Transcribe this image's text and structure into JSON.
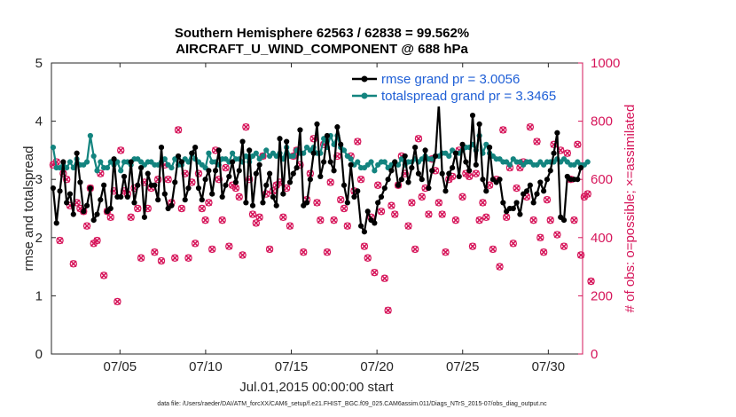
{
  "chart_data": {
    "type": "line",
    "title_line1": "Southern Hemisphere 62563 / 62838 = 99.562%",
    "title_line2": "AIRCRAFT_U_WIND_COMPONENT @ 688 hPa",
    "xlabel": "Jul.01,2015 00:00:00 start",
    "ylabel": "rmse and totalspread",
    "ylabel_right": "# of obs: o=possible; ×=assimilated",
    "x_tick_labels": [
      "07/05",
      "07/10",
      "07/15",
      "07/20",
      "07/25",
      "07/30"
    ],
    "x_tick_days": [
      5,
      10,
      15,
      20,
      25,
      30
    ],
    "xlim": [
      1,
      32
    ],
    "ylim": [
      0,
      5
    ],
    "y_ticks": [
      0,
      1,
      2,
      3,
      4,
      5
    ],
    "ylim_right": [
      0,
      1000
    ],
    "y_ticks_right": [
      0,
      200,
      400,
      600,
      800,
      1000
    ],
    "legend_location": "top-right",
    "colors": {
      "rmse": "#000000",
      "spread": "#13847f",
      "obs": "#d6155a"
    },
    "footer": "data file: /Users/raeder/DAI/ATM_forcXX/CAM6_setup/f.e21.FHIST_BGC.f09_025.CAM6assim.011/Diags_NTrS_2015-07/obs_diag_output.nc",
    "series": [
      {
        "name": "rmse",
        "label": "rmse grand pr = 3.0056",
        "values": [
          2.85,
          2.25,
          2.8,
          3.3,
          2.6,
          2.75,
          2.4,
          3.45,
          2.95,
          2.45,
          2.55,
          2.85,
          2.3,
          2.4,
          2.65,
          2.9,
          2.45,
          2.5,
          3.35,
          2.7,
          2.7,
          3.05,
          2.7,
          3.3,
          2.6,
          2.9,
          3.2,
          2.35,
          3.1,
          2.9,
          2.9,
          2.65,
          3.55,
          2.75,
          2.5,
          2.55,
          2.95,
          3.4,
          3.3,
          2.65,
          2.85,
          3.45,
          3.55,
          2.85,
          2.65,
          3.0,
          3.15,
          2.75,
          3.15,
          3.5,
          2.7,
          2.9,
          3.05,
          3.3,
          2.95,
          3.15,
          3.65,
          2.6,
          3.5,
          2.55,
          3.1,
          3.25,
          2.6,
          2.9,
          3.1,
          2.7,
          2.55,
          3.7,
          2.75,
          3.65,
          2.95,
          3.1,
          3.2,
          3.85,
          2.55,
          2.6,
          3.0,
          3.45,
          3.95,
          3.05,
          3.3,
          3.75,
          3.3,
          3.15,
          3.9,
          3.6,
          2.9,
          2.6,
          3.25,
          2.7,
          2.8,
          2.2,
          2.1,
          2.45,
          2.3,
          2.25,
          2.6,
          2.7,
          2.85,
          3.0,
          3.15,
          3.3,
          2.9,
          3.0,
          3.4,
          2.95,
          3.2,
          3.55,
          3.1,
          3.0,
          3.5,
          2.85,
          3.15,
          3.4,
          4.3,
          3.1,
          2.8,
          3.1,
          3.2,
          3.45,
          3.05,
          3.6,
          3.3,
          3.15,
          4.1,
          3.25,
          3.95,
          3.0,
          2.8,
          3.55,
          3.0,
          2.95,
          3.0,
          2.6,
          2.45,
          2.5,
          2.5,
          2.6,
          2.4,
          2.75,
          2.8,
          2.9,
          2.6,
          2.75,
          2.95,
          2.8,
          3.0,
          3.15,
          3.45,
          3.8,
          2.35,
          2.3,
          3.05,
          3.0,
          3.0,
          3.0,
          3.2
        ],
        "obs_possible": [
          650,
          660,
          390,
          620,
          600,
          510,
          310,
          520,
          500,
          490,
          440,
          570,
          380,
          390,
          620,
          270,
          490,
          470,
          560,
          180,
          700,
          560,
          550,
          470,
          570,
          500,
          330,
          590,
          500,
          570,
          350,
          600,
          320,
          650,
          600,
          520,
          330,
          770,
          500,
          620,
          330,
          590,
          380,
          620,
          500,
          460,
          520,
          360,
          700,
          600,
          460,
          640,
          370,
          580,
          570,
          540,
          340,
          780,
          600,
          480,
          450,
          470,
          680,
          550,
          360,
          560,
          580,
          590,
          470,
          570,
          440,
          680,
          700,
          650,
          350,
          530,
          620,
          740,
          520,
          460,
          720,
          350,
          590,
          460,
          680,
          530,
          500,
          440,
          680,
          560,
          730,
          600,
          370,
          330,
          470,
          280,
          580,
          490,
          260,
          150,
          510,
          480,
          580,
          680,
          620,
          440,
          520,
          360,
          740,
          540,
          570,
          480,
          670,
          630,
          520,
          480,
          350,
          600,
          610,
          460,
          700,
          540,
          620,
          610,
          370,
          620,
          460,
          520,
          470,
          580,
          360,
          600,
          300,
          770,
          470,
          640,
          380,
          570,
          640,
          660,
          540,
          780,
          460,
          730,
          400,
          350,
          530,
          460,
          720,
          410,
          700,
          370,
          690,
          600,
          460,
          720,
          340,
          540,
          550,
          250
        ],
        "obs_assimilated": [
          650,
          660,
          390,
          620,
          600,
          510,
          310,
          520,
          500,
          490,
          440,
          570,
          380,
          390,
          620,
          270,
          490,
          470,
          560,
          180,
          700,
          560,
          550,
          470,
          570,
          500,
          330,
          590,
          500,
          570,
          350,
          600,
          320,
          650,
          600,
          520,
          330,
          770,
          500,
          620,
          330,
          590,
          380,
          620,
          500,
          460,
          520,
          360,
          700,
          600,
          460,
          640,
          370,
          580,
          570,
          540,
          340,
          780,
          600,
          480,
          450,
          470,
          680,
          550,
          360,
          560,
          580,
          590,
          470,
          570,
          440,
          680,
          700,
          650,
          350,
          530,
          620,
          740,
          520,
          460,
          720,
          350,
          590,
          460,
          680,
          530,
          500,
          440,
          680,
          560,
          730,
          600,
          370,
          330,
          470,
          280,
          580,
          490,
          260,
          150,
          510,
          480,
          580,
          680,
          620,
          440,
          520,
          360,
          740,
          540,
          570,
          480,
          670,
          630,
          520,
          480,
          350,
          600,
          610,
          460,
          700,
          540,
          620,
          610,
          370,
          620,
          460,
          520,
          470,
          580,
          360,
          600,
          300,
          770,
          470,
          640,
          380,
          570,
          640,
          660,
          540,
          780,
          460,
          730,
          400,
          350,
          530,
          460,
          720,
          410,
          700,
          370,
          690,
          600,
          460,
          720,
          340,
          540,
          550,
          250
        ]
      },
      {
        "name": "totalspread",
        "label": "totalspread grand pr = 3.3465",
        "values": [
          3.55,
          3.2,
          3.2,
          3.25,
          3.2,
          3.3,
          3.2,
          3.35,
          3.25,
          3.25,
          3.3,
          3.75,
          3.4,
          3.15,
          3.3,
          3.2,
          3.2,
          3.3,
          3.25,
          3.3,
          3.15,
          3.3,
          3.3,
          3.25,
          3.35,
          3.35,
          3.3,
          3.25,
          3.3,
          3.3,
          3.25,
          3.25,
          3.3,
          3.35,
          3.25,
          3.2,
          3.35,
          3.25,
          3.25,
          3.35,
          3.3,
          3.45,
          3.35,
          3.3,
          3.25,
          3.2,
          3.45,
          3.3,
          3.3,
          3.25,
          3.35,
          3.35,
          3.3,
          3.45,
          3.35,
          3.35,
          3.3,
          3.4,
          3.3,
          3.4,
          3.45,
          3.35,
          3.4,
          3.5,
          3.4,
          3.45,
          3.4,
          3.45,
          3.35,
          3.55,
          3.4,
          3.4,
          3.5,
          3.45,
          3.45,
          3.55,
          3.5,
          3.55,
          3.45,
          3.45,
          3.7,
          3.55,
          3.75,
          3.6,
          3.75,
          3.55,
          3.5,
          3.4,
          3.35,
          3.25,
          3.3,
          3.2,
          3.2,
          3.25,
          3.3,
          3.15,
          3.25,
          3.3,
          3.3,
          3.2,
          3.25,
          3.3,
          3.25,
          3.35,
          3.25,
          3.3,
          3.3,
          3.35,
          3.3,
          3.35,
          3.4,
          3.35,
          3.35,
          3.4,
          3.4,
          3.45,
          3.45,
          3.4,
          3.5,
          3.45,
          3.45,
          3.5,
          3.55,
          3.55,
          3.6,
          3.5,
          3.75,
          3.45,
          3.6,
          3.45,
          3.4,
          3.35,
          3.35,
          3.3,
          3.3,
          3.25,
          3.35,
          3.3,
          3.3,
          3.25,
          3.3,
          3.3,
          3.25,
          3.25,
          3.3,
          3.25,
          3.3,
          3.3,
          3.3,
          3.35,
          3.3,
          3.35,
          3.3,
          3.25,
          3.25,
          3.3,
          3.25,
          3.25,
          3.3
        ]
      }
    ]
  }
}
